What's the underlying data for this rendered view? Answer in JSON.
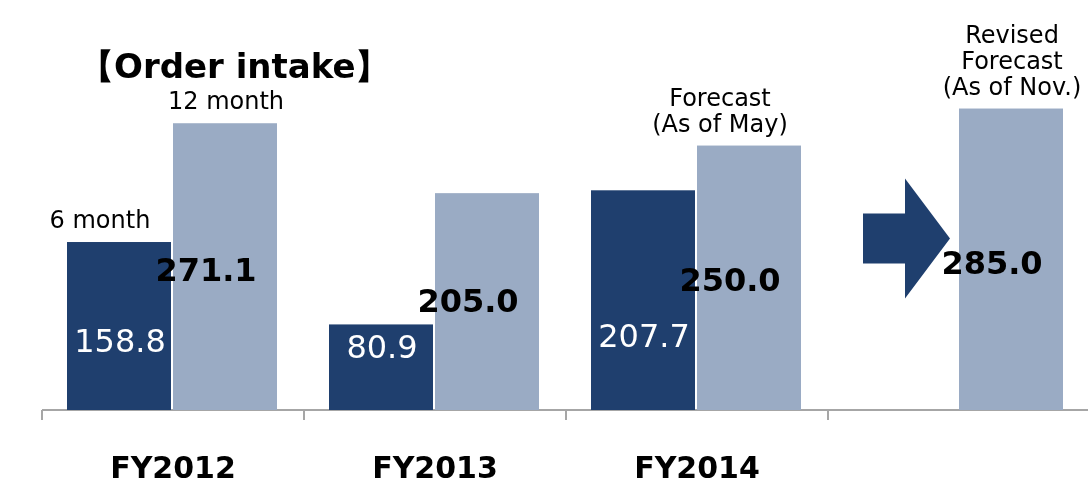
{
  "chart_data": {
    "type": "bar",
    "title": "【Order intake】",
    "categories": [
      "FY2012",
      "FY2013",
      "FY2014",
      null
    ],
    "series": [
      {
        "name": "6 month",
        "color": "#1f3f6e",
        "values": [
          158.8,
          80.9,
          207.7,
          null
        ],
        "value_labels": [
          "158.8",
          "80.9",
          "207.7",
          null
        ]
      },
      {
        "name": "12 month",
        "color": "#9aabc4",
        "values": [
          271.1,
          205.0,
          250.0,
          285.0
        ],
        "value_labels": [
          "271.1",
          "205.0",
          "250.0",
          "285.0"
        ]
      }
    ],
    "annotations": [
      {
        "text": "Forecast\n(As of May)",
        "x": "FY2014",
        "y": 250.0
      },
      {
        "text": "Revised\nForecast\n(As of Nov.)",
        "y": 285.0
      }
    ]
  }
}
